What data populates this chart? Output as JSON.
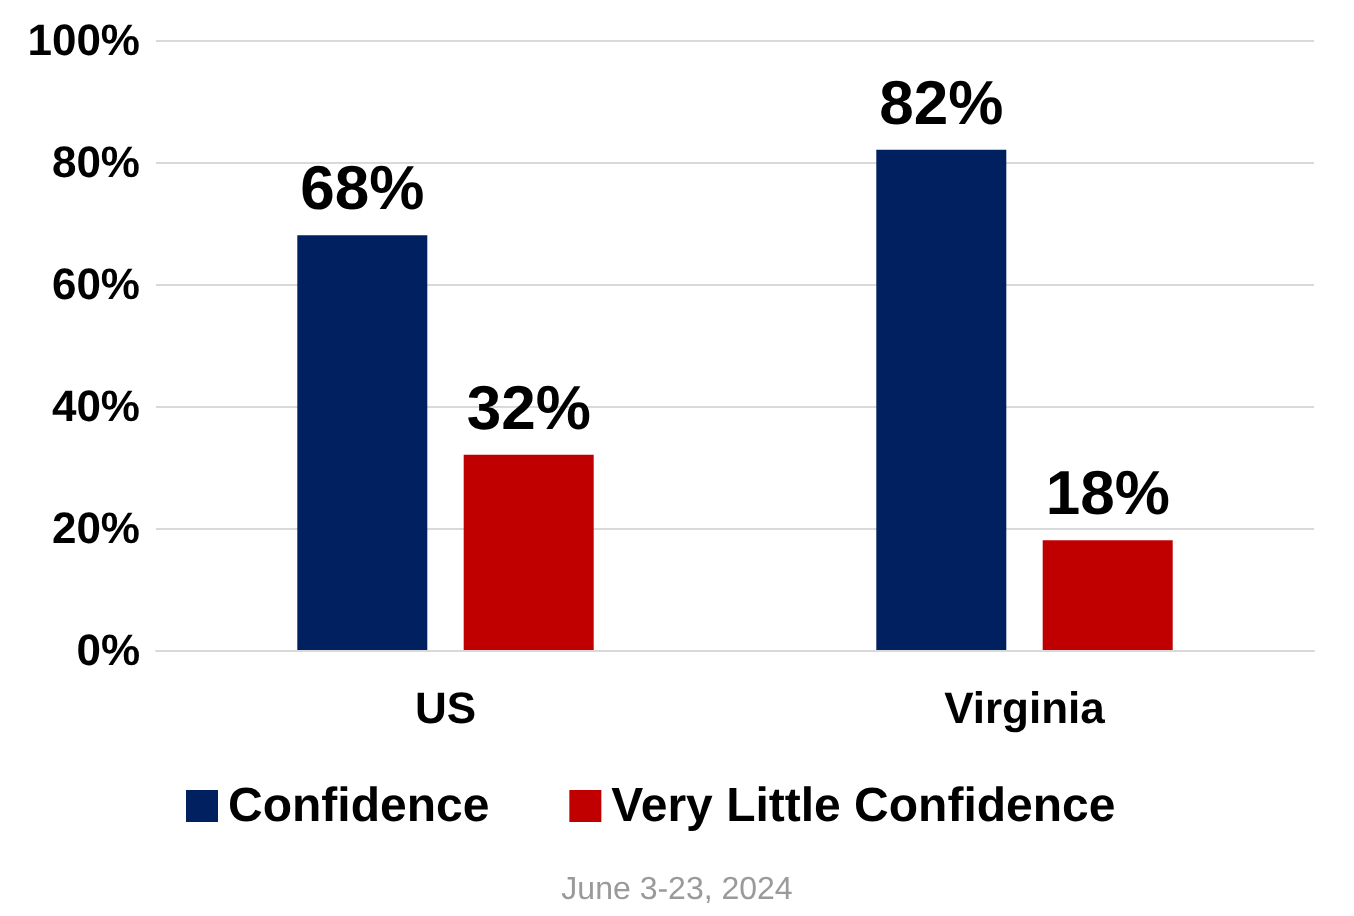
{
  "chart_data": {
    "type": "bar",
    "categories": [
      "US",
      "Virginia"
    ],
    "series": [
      {
        "name": "Confidence",
        "color": "#002060",
        "values": [
          68,
          82
        ],
        "value_labels": [
          "68%",
          "82%"
        ]
      },
      {
        "name": "Very Little Confidence",
        "color": "#c00000",
        "values": [
          32,
          18
        ],
        "value_labels": [
          "32%",
          "18%"
        ]
      }
    ],
    "ylim": [
      0,
      100
    ],
    "yticks": [
      {
        "value": 0,
        "label": "0%"
      },
      {
        "value": 20,
        "label": "20%"
      },
      {
        "value": 40,
        "label": "40%"
      },
      {
        "value": 60,
        "label": "60%"
      },
      {
        "value": 80,
        "label": "80%"
      },
      {
        "value": 100,
        "label": "100%"
      }
    ],
    "grid": "y",
    "legend": "bottom",
    "annotations": [
      "June 3-23, 2024"
    ]
  }
}
